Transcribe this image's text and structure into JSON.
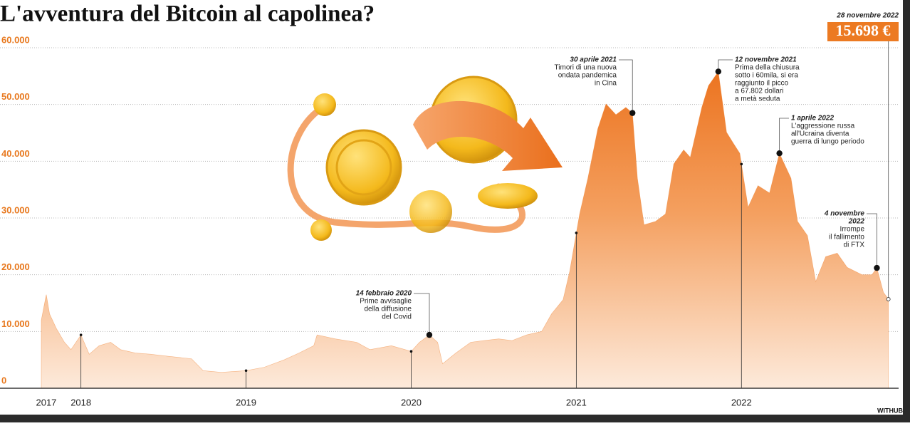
{
  "chart_data": {
    "type": "area",
    "title": "L'avventura del Bitcoin al capolinea?",
    "source": "WITHUB",
    "x": [
      2017.76,
      2017.79,
      2017.81,
      2017.85,
      2017.9,
      2017.94,
      2018.0,
      2018.05,
      2018.11,
      2018.18,
      2018.24,
      2018.33,
      2018.42,
      2018.54,
      2018.67,
      2018.74,
      2018.85,
      2019.0,
      2019.11,
      2019.23,
      2019.32,
      2019.41,
      2019.43,
      2019.54,
      2019.67,
      2019.75,
      2019.88,
      2020.0,
      2020.05,
      2020.11,
      2020.16,
      2020.19,
      2020.27,
      2020.36,
      2020.44,
      2020.53,
      2020.61,
      2020.7,
      2020.79,
      2020.85,
      2020.92,
      2020.96,
      2020.99,
      2021.02,
      2021.07,
      2021.13,
      2021.18,
      2021.24,
      2021.3,
      2021.34,
      2021.37,
      2021.41,
      2021.48,
      2021.54,
      2021.59,
      2021.65,
      2021.69,
      2021.76,
      2021.8,
      2021.86,
      2021.91,
      2021.95,
      2021.99,
      2022.04,
      2022.1,
      2022.17,
      2022.23,
      2022.3,
      2022.34,
      2022.4,
      2022.45,
      2022.51,
      2022.58,
      2022.64,
      2022.73,
      2022.79,
      2022.82,
      2022.86,
      2022.89
    ],
    "series": [
      {
        "color": "#ef7b25",
        "values": [
          12000,
          16500,
          13100,
          10600,
          8100,
          6800,
          9400,
          6000,
          7500,
          8100,
          6800,
          6200,
          6000,
          5600,
          5200,
          3100,
          2800,
          3100,
          3700,
          5000,
          6200,
          7500,
          9400,
          8700,
          8100,
          6800,
          7500,
          6500,
          8100,
          9400,
          8100,
          4300,
          6200,
          8100,
          8400,
          8700,
          8400,
          9400,
          10000,
          13100,
          15600,
          20600,
          25700,
          30700,
          37000,
          45700,
          50100,
          48200,
          49500,
          48500,
          37000,
          28800,
          29400,
          30700,
          39500,
          42000,
          40700,
          49500,
          53300,
          55800,
          45100,
          43200,
          41400,
          31900,
          35700,
          34400,
          41400,
          37000,
          29400,
          26900,
          18800,
          23200,
          23800,
          21300,
          20000,
          20000,
          21200,
          16900,
          15698
        ]
      }
    ],
    "xlim": [
      2017.76,
      2022.9
    ],
    "ylim": [
      0,
      60000
    ],
    "xticks": [
      {
        "value": 2017.79,
        "label": "2017"
      },
      2018,
      2019,
      2020,
      2021,
      2022
    ],
    "yticks": [
      0,
      {
        "value": 10000,
        "label": "10.000"
      },
      {
        "value": 20000,
        "label": "20.000"
      },
      {
        "value": 30000,
        "label": "30.000"
      },
      {
        "value": 40000,
        "label": "40.000"
      },
      {
        "value": 50000,
        "label": "50.000"
      },
      {
        "value": 60000,
        "label": "60.000"
      }
    ],
    "grid": true,
    "annotations": [
      {
        "title": [
          "14 febbraio 2020"
        ],
        "lines": [
          "Prime avvisaglie",
          "della diffusione",
          "del Covid"
        ],
        "x": 2020.11,
        "y": 9400
      },
      {
        "title": [
          "30 aprile 2021"
        ],
        "lines": [
          "Timori di una nuova",
          "ondata pandemica",
          "in Cina"
        ],
        "x": 2021.34,
        "y": 48500
      },
      {
        "title": [
          "12 novembre 2021"
        ],
        "lines": [
          "Prima della chiusura",
          "sotto i 60mila, si era",
          "raggiunto il picco",
          "a 67.802 dollari",
          "a metà seduta"
        ],
        "x": 2021.86,
        "y": 55800
      },
      {
        "title": [
          "1 aprile 2022"
        ],
        "lines": [
          "L'aggressione russa",
          "all'Ucraina diventa",
          "guerra di lungo periodo"
        ],
        "x": 2022.23,
        "y": 41400
      },
      {
        "title": [
          "4 novembre",
          "2022"
        ],
        "lines": [
          "Irrompe",
          "il fallimento",
          "di FTX"
        ],
        "x": 2022.82,
        "y": 21200
      }
    ],
    "last": {
      "date": "28 novembre 2022",
      "x": 2022.89,
      "value": 15698,
      "value_label": "15.698 €"
    }
  }
}
